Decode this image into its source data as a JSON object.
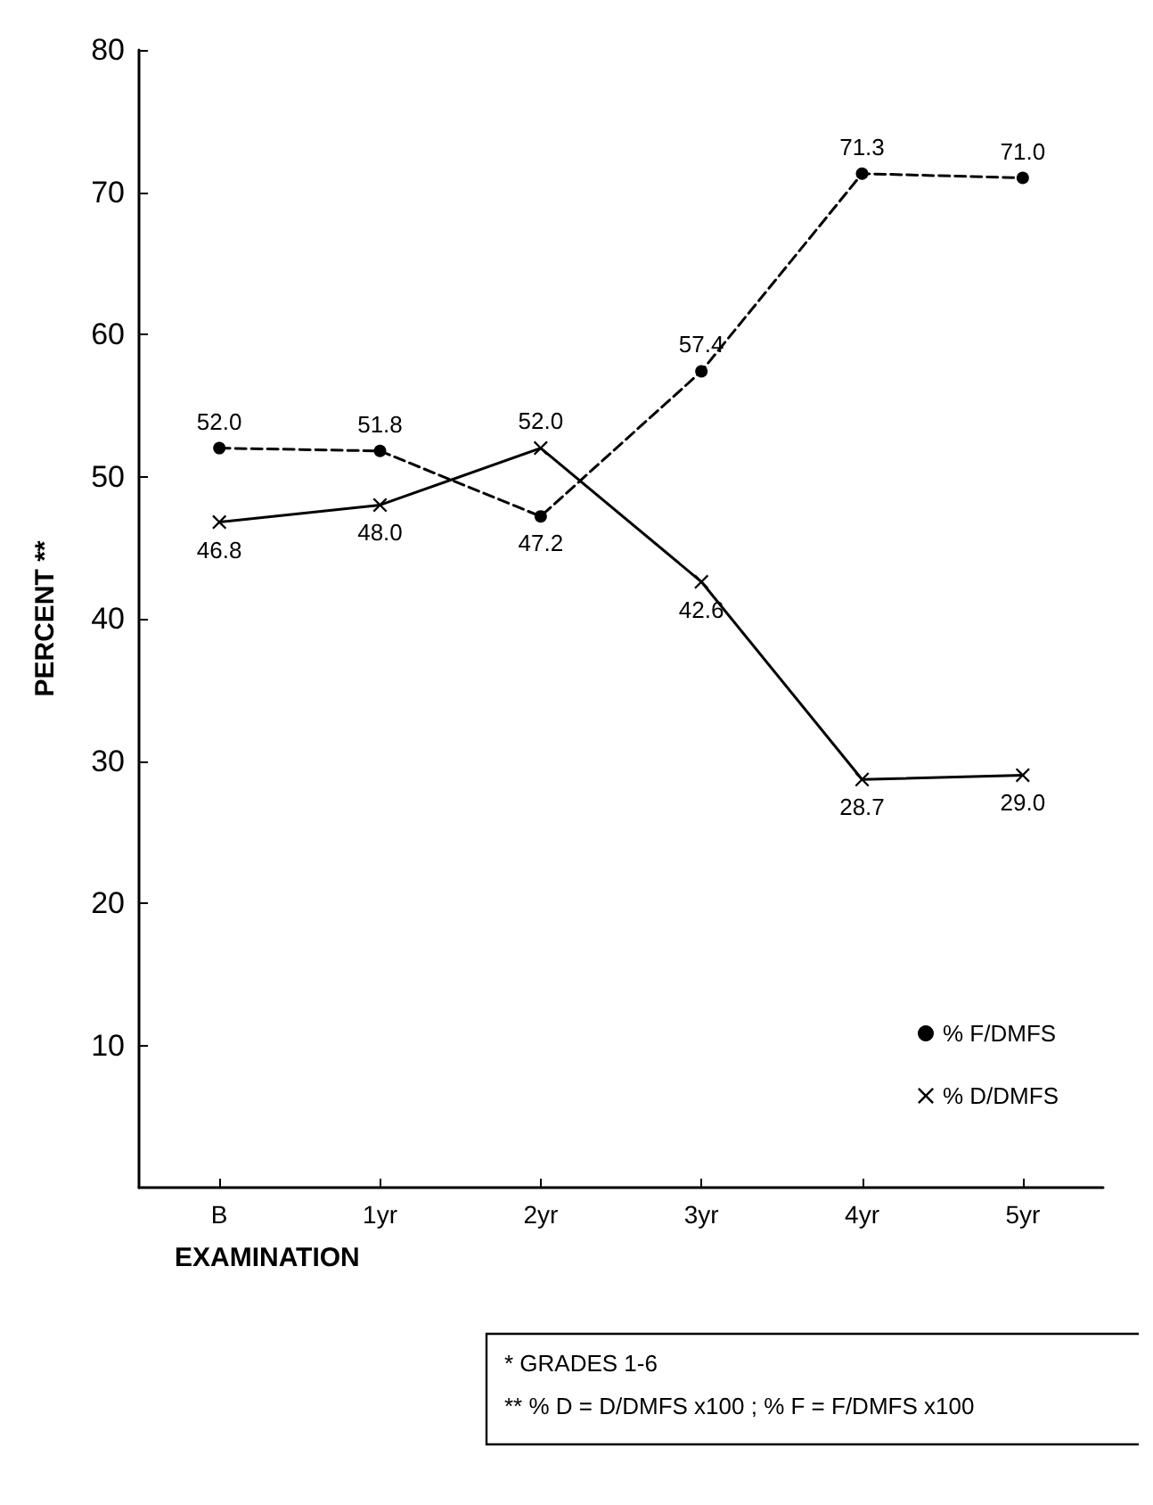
{
  "chart_data": {
    "type": "line",
    "xlabel": "EXAMINATION",
    "ylabel": "PERCENT **",
    "categories": [
      "B",
      "1yr",
      "2yr",
      "3yr",
      "4yr",
      "5yr"
    ],
    "series": [
      {
        "name": "% F/DMFS",
        "color": "#000000",
        "marker": "circle",
        "line_style": "dashed",
        "values": [
          52.0,
          51.8,
          47.2,
          57.4,
          71.3,
          71.0
        ],
        "value_labels": [
          "52.0",
          "51.8",
          "47.2",
          "57.4",
          "71.3",
          "71.0"
        ]
      },
      {
        "name": "% D/DMFS",
        "color": "#000000",
        "marker": "cross",
        "line_style": "solid",
        "values": [
          46.8,
          48.0,
          52.0,
          42.6,
          28.7,
          29.0
        ],
        "value_labels": [
          "46.8",
          "48.0",
          "52.0",
          "42.6",
          "28.7",
          "29.0"
        ]
      }
    ],
    "ylim": [
      0,
      80
    ],
    "yticks": [
      10,
      20,
      30,
      40,
      50,
      60,
      70,
      80
    ],
    "grid": false,
    "legend": "bottom right",
    "annotations": [
      "* GRADES 1-6",
      "** % D = D/DMFS x100 ; % F = F/DMFS x100"
    ]
  }
}
